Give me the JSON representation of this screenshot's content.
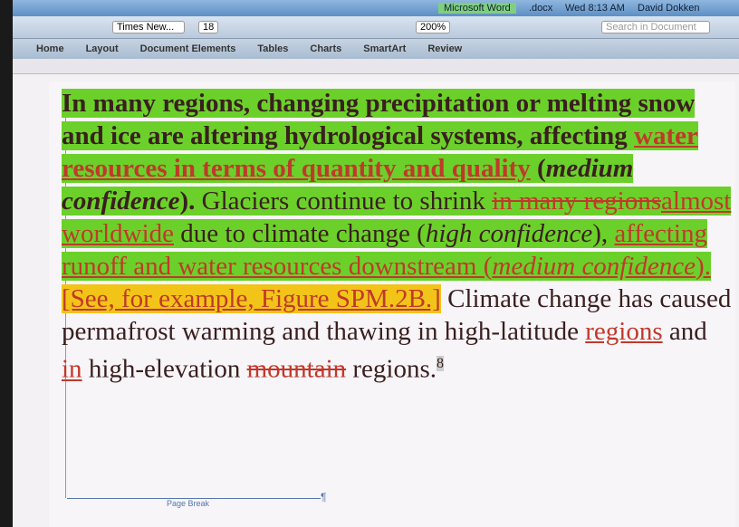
{
  "menu_bar": {
    "clock": "Wed 8:13 AM",
    "user": "David Dokken",
    "window_title": "Microsoft Word",
    "file_name": ".docx"
  },
  "toolbar": {
    "font": "Times New...",
    "font_size": "18",
    "zoom": "200%",
    "search_placeholder": "Search in Document"
  },
  "ribbon_tabs": [
    "Home",
    "Layout",
    "Document Elements",
    "Tables",
    "Charts",
    "SmartArt",
    "Review"
  ],
  "document": {
    "paragraph": {
      "runs": [
        "In many regions, changing precipitation or melting snow and ice are altering hydrological systems, affecting ",
        "water resources in terms of quantity and quality",
        " (",
        "medium confidence",
        "). ",
        "Glaciers continue to shrink ",
        "in many regions",
        "almost worldwide",
        " due to climate change (",
        "high confidence",
        "), ",
        "affecting runoff and water resources downstream (",
        "medium confidence",
        ").",
        "[See, for example, Figure SPM.2B.]",
        " Climate change has caused permafrost warming and thawing in high-latitude ",
        "regions",
        " and ",
        "in",
        " high-elevation ",
        "mountain",
        " regions.",
        "8"
      ]
    },
    "page_break": "Page Break",
    "pilcrow": "¶"
  }
}
